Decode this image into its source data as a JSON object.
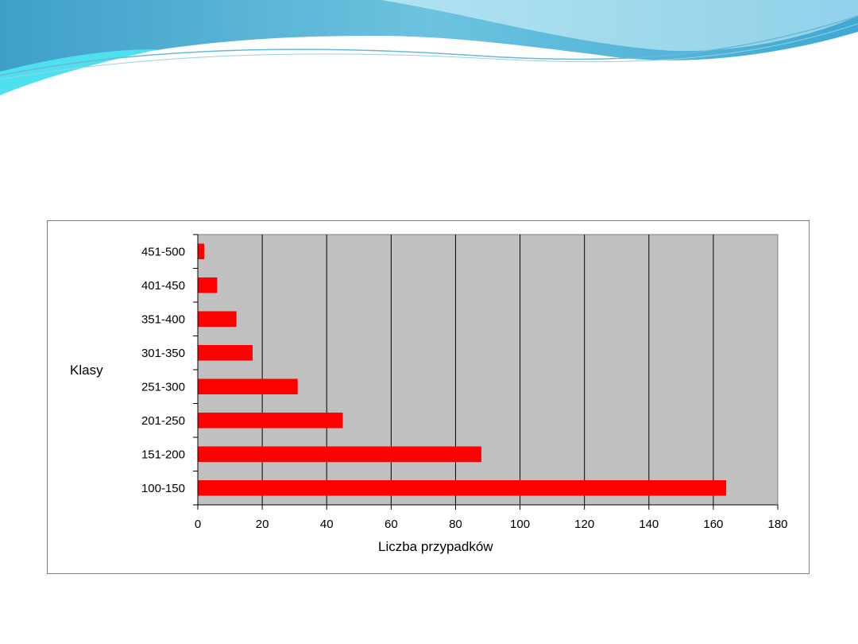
{
  "chart_data": {
    "type": "bar",
    "orientation": "horizontal",
    "categories": [
      "100-150",
      "151-200",
      "201-250",
      "251-300",
      "301-350",
      "351-400",
      "401-450",
      "451-500"
    ],
    "values": [
      164,
      88,
      45,
      31,
      17,
      12,
      6,
      2
    ],
    "xlabel": "Liczba przypadków",
    "ylabel": "Klasy",
    "xlim": [
      0,
      180
    ],
    "xticks": [
      "0",
      "20",
      "40",
      "60",
      "80",
      "100",
      "120",
      "140",
      "160",
      "180"
    ],
    "grid": "vertical",
    "legend": "none",
    "bar_color": "#ff0000",
    "plot_background": "#c0c0c0"
  },
  "colors": {
    "wave_dark": "#4fa8d0",
    "wave_light": "#8fd4ea",
    "wave_cyan": "#5ad0e8"
  }
}
